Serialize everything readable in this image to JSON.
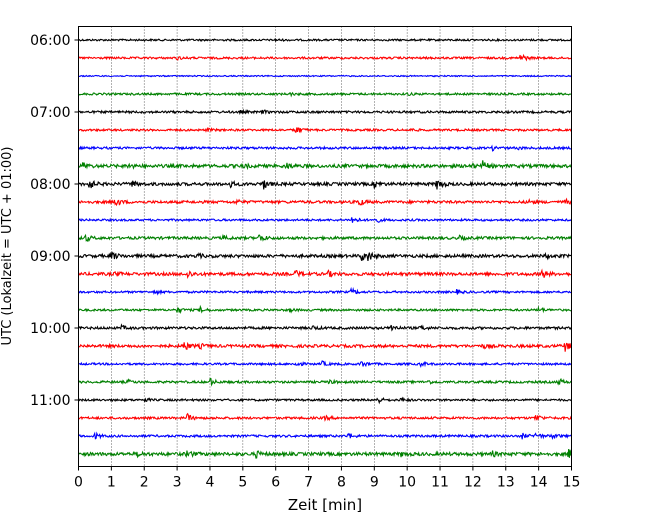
{
  "chart_data": {
    "type": "line",
    "title": "",
    "xlabel": "Zeit  [min]",
    "ylabel": "UTC (Lokalzeit = UTC + 01:00)",
    "xlim": [
      0,
      15
    ],
    "x_ticks": [
      0,
      1,
      2,
      3,
      4,
      5,
      6,
      7,
      8,
      9,
      10,
      11,
      12,
      13,
      14,
      15
    ],
    "y_tick_labels": [
      "06:00",
      "07:00",
      "08:00",
      "09:00",
      "10:00",
      "11:00"
    ],
    "grid": "vertical dotted lines at each minute",
    "line_colors": [
      "#000000",
      "#ff0000",
      "#0000ff",
      "#008000"
    ],
    "series": [
      {
        "start": "06:00",
        "color": "#000000",
        "amplitude": 0.9,
        "events": [
          [
            6.0,
            1.0
          ]
        ]
      },
      {
        "start": "06:15",
        "color": "#ff0000",
        "amplitude": 1.0,
        "events": [
          [
            13.45,
            5.0
          ],
          [
            3.0,
            1.5
          ]
        ]
      },
      {
        "start": "06:30",
        "color": "#0000ff",
        "amplitude": 0.6,
        "events": []
      },
      {
        "start": "06:45",
        "color": "#008000",
        "amplitude": 1.0,
        "events": [
          [
            6.4,
            1.5
          ],
          [
            10.0,
            1.2
          ]
        ]
      },
      {
        "start": "07:00",
        "color": "#000000",
        "amplitude": 1.1,
        "events": [
          [
            5.6,
            1.5
          ],
          [
            4.9,
            1.2
          ]
        ]
      },
      {
        "start": "07:15",
        "color": "#ff0000",
        "amplitude": 1.0,
        "events": [
          [
            6.6,
            5.0
          ],
          [
            3.9,
            1.5
          ],
          [
            10.1,
            1.2
          ]
        ]
      },
      {
        "start": "07:30",
        "color": "#0000ff",
        "amplitude": 1.1,
        "events": [
          [
            12.6,
            2.0
          ],
          [
            13.3,
            1.8
          ]
        ]
      },
      {
        "start": "07:45",
        "color": "#008000",
        "amplitude": 1.6,
        "events": [
          [
            0.1,
            4.0
          ],
          [
            12.3,
            4.0
          ],
          [
            11.9,
            2.5
          ],
          [
            6.3,
            3.0
          ],
          [
            1.5,
            2.5
          ],
          [
            5.0,
            2.0
          ]
        ]
      },
      {
        "start": "08:00",
        "color": "#000000",
        "amplitude": 1.5,
        "events": [
          [
            0.3,
            6.0
          ],
          [
            5.6,
            5.5
          ],
          [
            10.9,
            6.0
          ],
          [
            1.6,
            3.5
          ],
          [
            4.6,
            3.0
          ],
          [
            9.0,
            3.0
          ]
        ]
      },
      {
        "start": "08:15",
        "color": "#ff0000",
        "amplitude": 1.3,
        "events": [
          [
            1.1,
            5.0
          ],
          [
            8.5,
            5.0
          ],
          [
            14.8,
            2.5
          ],
          [
            13.7,
            2.0
          ],
          [
            4.8,
            2.0
          ]
        ]
      },
      {
        "start": "08:30",
        "color": "#0000ff",
        "amplitude": 1.0,
        "events": [
          [
            8.3,
            4.5
          ],
          [
            9.0,
            3.5
          ]
        ]
      },
      {
        "start": "08:45",
        "color": "#008000",
        "amplitude": 1.3,
        "events": [
          [
            5.5,
            4.5
          ],
          [
            0.2,
            3.5
          ],
          [
            4.4,
            2.0
          ],
          [
            11.6,
            2.0
          ]
        ]
      },
      {
        "start": "09:00",
        "color": "#000000",
        "amplitude": 1.5,
        "events": [
          [
            1.0,
            4.5
          ],
          [
            8.6,
            5.0
          ],
          [
            8.8,
            4.5
          ],
          [
            14.2,
            2.0
          ],
          [
            3.6,
            2.0
          ]
        ]
      },
      {
        "start": "09:15",
        "color": "#ff0000",
        "amplitude": 1.5,
        "events": [
          [
            3.3,
            4.0
          ],
          [
            14.1,
            4.5
          ],
          [
            6.6,
            3.5
          ],
          [
            7.6,
            2.5
          ],
          [
            1.1,
            2.0
          ]
        ]
      },
      {
        "start": "09:30",
        "color": "#0000ff",
        "amplitude": 1.0,
        "events": [
          [
            8.3,
            3.5
          ],
          [
            11.5,
            2.0
          ],
          [
            2.3,
            2.0
          ]
        ]
      },
      {
        "start": "09:45",
        "color": "#008000",
        "amplitude": 1.0,
        "events": [
          [
            3.0,
            3.0
          ],
          [
            3.7,
            2.5
          ],
          [
            14.0,
            2.5
          ],
          [
            6.4,
            2.0
          ]
        ]
      },
      {
        "start": "10:00",
        "color": "#000000",
        "amplitude": 1.2,
        "events": [
          [
            9.5,
            4.0
          ],
          [
            7.1,
            2.5
          ],
          [
            10.4,
            2.5
          ],
          [
            1.3,
            2.0
          ]
        ]
      },
      {
        "start": "10:15",
        "color": "#ff0000",
        "amplitude": 1.4,
        "events": [
          [
            3.2,
            5.5
          ],
          [
            14.8,
            5.0
          ],
          [
            3.7,
            2.0
          ],
          [
            12.3,
            2.0
          ]
        ]
      },
      {
        "start": "10:30",
        "color": "#0000ff",
        "amplitude": 1.0,
        "events": [
          [
            8.6,
            3.5
          ],
          [
            6.6,
            3.0
          ],
          [
            7.4,
            2.5
          ],
          [
            10.4,
            2.5
          ]
        ]
      },
      {
        "start": "10:45",
        "color": "#008000",
        "amplitude": 1.1,
        "events": [
          [
            4.0,
            3.5
          ],
          [
            14.6,
            3.5
          ],
          [
            1.5,
            2.0
          ],
          [
            7.6,
            2.0
          ],
          [
            10.6,
            2.0
          ]
        ]
      },
      {
        "start": "11:00",
        "color": "#000000",
        "amplitude": 1.0,
        "events": [
          [
            9.1,
            3.5
          ],
          [
            9.8,
            2.0
          ],
          [
            2.0,
            1.5
          ]
        ]
      },
      {
        "start": "11:15",
        "color": "#ff0000",
        "amplitude": 1.1,
        "events": [
          [
            3.3,
            4.0
          ],
          [
            13.9,
            4.5
          ],
          [
            7.5,
            2.0
          ]
        ]
      },
      {
        "start": "11:30",
        "color": "#0000ff",
        "amplitude": 1.1,
        "events": [
          [
            0.5,
            3.0
          ],
          [
            8.2,
            3.0
          ],
          [
            13.9,
            3.5
          ],
          [
            14.4,
            3.0
          ],
          [
            13.5,
            2.5
          ]
        ]
      },
      {
        "start": "11:45",
        "color": "#008000",
        "amplitude": 1.6,
        "events": [
          [
            3.3,
            4.0
          ],
          [
            5.4,
            3.0
          ],
          [
            14.9,
            4.5
          ],
          [
            1.8,
            2.5
          ],
          [
            9.8,
            2.0
          ],
          [
            12.6,
            2.0
          ]
        ]
      }
    ]
  }
}
